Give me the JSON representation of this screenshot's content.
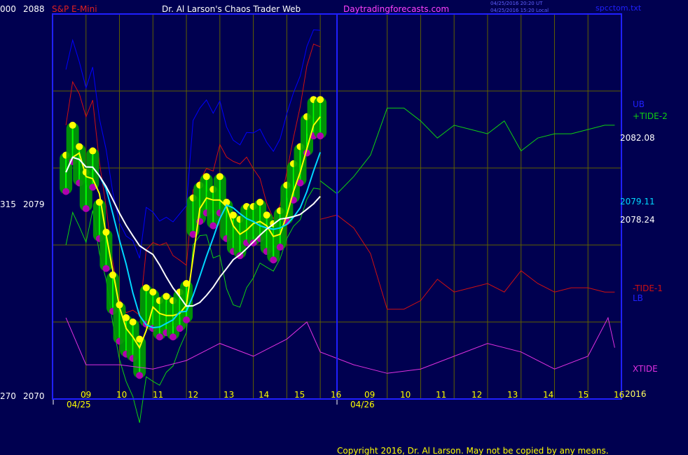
{
  "header": {
    "instrument": "S&P E-Mini",
    "author": "Dr. Al Larson's Chaos Trader Web",
    "site": "Daytradingforecasts.com",
    "stamp_ut": "04/25/2016 20:20 UT",
    "stamp_local": "04/25/2016 15:20 Local",
    "file": "spcctom.txt"
  },
  "left_axis": {
    "top": {
      "left": "000",
      "right": "2088"
    },
    "mid": {
      "left": "315",
      "right": "2079"
    },
    "bottom": {
      "left": "270",
      "right": "2070"
    }
  },
  "right_labels": {
    "ub": "UB",
    "tide2": "+TIDE-2",
    "p2082": "2082.08",
    "p2079": "2079.11",
    "p2078": "2078.24",
    "tide1": "-TIDE-1",
    "lb": "LB",
    "xtide": "XTIDE",
    "year": "2016"
  },
  "date_labels": [
    "04/25",
    "04/26"
  ],
  "footer": {
    "copyright": "Copyright 2016, Dr. Al Larson. May not be copied by any means."
  },
  "colors": {
    "background": "#000050",
    "frame": "#2020ff",
    "grid": "#606000",
    "bars": "#00ff00",
    "fastMA": "#ffff00",
    "midMA": "#00d8ff",
    "slowMA": "#ffffff",
    "plusTide": "#10d010",
    "minusTide": "#d01010",
    "ub": "#0000ff",
    "xtide": "#e030e0",
    "highDot": "#ffff00",
    "lowDot": "#b000b0",
    "energy": "#00a000"
  },
  "chart_data": {
    "type": "line",
    "title": "S&P E-Mini",
    "ylim": [
      2070,
      2088
    ],
    "yticks": [
      2070,
      2079,
      2088
    ],
    "x_hours": {
      "day1": [
        "09",
        "10",
        "11",
        "12",
        "13",
        "14",
        "15",
        "16"
      ],
      "day2": [
        "09",
        "10",
        "11",
        "12",
        "13",
        "14",
        "15",
        "16"
      ]
    },
    "price_levels": {
      "ub_level": 2082.08,
      "mid_ma_level": 2079.11,
      "slow_ma_level": 2078.24
    },
    "series": [
      {
        "name": "S&P E-Mini",
        "x": [
          8.4,
          8.6,
          8.8,
          9.0,
          9.2,
          9.4,
          9.6,
          9.8,
          10.0,
          10.2,
          10.4,
          10.6,
          10.8,
          11.0,
          11.2,
          11.4,
          11.6,
          11.8,
          12.0,
          12.2,
          12.4,
          12.6,
          12.8,
          13.0,
          13.2,
          13.4,
          13.6,
          13.8,
          14.0,
          14.2,
          14.4,
          14.6,
          14.8,
          15.0,
          15.2,
          15.4,
          15.6,
          15.8,
          16.0
        ],
        "y": [
          2080.6,
          2082.0,
          2081.0,
          2079.8,
          2080.8,
          2078.4,
          2077.0,
          2075.0,
          2073.6,
          2073.0,
          2072.8,
          2072.0,
          2074.4,
          2074.2,
          2073.8,
          2074.0,
          2073.8,
          2074.2,
          2074.6,
          2078.6,
          2079.2,
          2079.6,
          2079.0,
          2079.6,
          2078.4,
          2077.8,
          2077.6,
          2078.2,
          2078.2,
          2078.4,
          2077.8,
          2077.4,
          2078.0,
          2079.2,
          2080.2,
          2081.0,
          2082.4,
          2083.2,
          2083.2
        ]
      },
      {
        "name": "+TIDE-2",
        "x": [
          16.0,
          16.5,
          17.0,
          17.5,
          18.0,
          18.5,
          19.0,
          19.5,
          20.0,
          20.5,
          21.0,
          21.5,
          22.0,
          22.5,
          23.0,
          23.5,
          24.0,
          24.5,
          24.8
        ],
        "y": [
          2080.2,
          2079.6,
          2080.4,
          2081.4,
          2083.6,
          2083.6,
          2083.0,
          2082.2,
          2082.8,
          2082.6,
          2082.4,
          2083.0,
          2081.6,
          2082.2,
          2082.4,
          2082.4,
          2082.6,
          2082.8,
          2082.8
        ]
      },
      {
        "name": "-TIDE-1",
        "x": [
          16.0,
          16.5,
          17.0,
          17.5,
          18.0,
          18.5,
          19.0,
          19.5,
          20.0,
          20.5,
          21.0,
          21.5,
          22.0,
          22.5,
          23.0,
          23.5,
          24.0,
          24.5,
          24.8
        ],
        "y": [
          2078.4,
          2078.6,
          2078.0,
          2076.8,
          2074.2,
          2074.2,
          2074.6,
          2075.6,
          2075.0,
          2075.2,
          2075.4,
          2075.0,
          2076.0,
          2075.4,
          2075.0,
          2075.2,
          2075.2,
          2075.0,
          2075.0
        ]
      },
      {
        "name": "XTIDE",
        "x": [
          8.4,
          9.0,
          10.0,
          11.0,
          12.0,
          13.0,
          14.0,
          15.0,
          15.6,
          16.0,
          17.0,
          18.0,
          19.0,
          20.0,
          21.0,
          22.0,
          23.0,
          24.0,
          24.6,
          24.8
        ],
        "y": [
          2073.8,
          2071.6,
          2071.6,
          2071.4,
          2071.8,
          2072.6,
          2072.0,
          2072.8,
          2073.6,
          2072.2,
          2071.6,
          2071.2,
          2071.4,
          2072.0,
          2072.6,
          2072.2,
          2071.4,
          2072.0,
          2073.8,
          2072.4
        ]
      }
    ]
  }
}
